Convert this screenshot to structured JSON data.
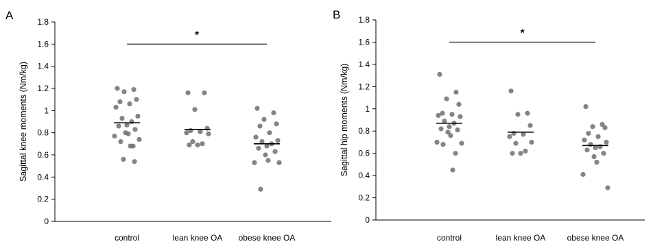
{
  "chart_data": [
    {
      "type": "scatter",
      "panel_label": "A",
      "title": "",
      "xlabel": "",
      "ylabel": "Sagittal knee moments (Nm/kg)",
      "ylim": [
        0,
        1.8
      ],
      "yticks": [
        "0",
        "0.2",
        "0.4",
        "0.6",
        "0.8",
        "1",
        "1.2",
        "1.4",
        "1.6",
        "1.8"
      ],
      "grid": false,
      "categories": [
        "control",
        "lean knee OA",
        "obese knee OA"
      ],
      "means": [
        0.89,
        0.83,
        0.7
      ],
      "significance": {
        "from": "control",
        "to": "obese knee OA",
        "y": 1.6,
        "label": "*"
      },
      "series": [
        {
          "category": "control",
          "values": [
            1.2,
            1.19,
            1.17,
            1.1,
            1.08,
            1.06,
            1.03,
            0.95,
            0.93,
            0.9,
            0.87,
            0.86,
            0.83,
            0.8,
            0.79,
            0.77,
            0.74,
            0.72,
            0.68,
            0.68,
            0.56,
            0.54
          ]
        },
        {
          "category": "lean knee OA",
          "values": [
            1.16,
            1.16,
            1.01,
            0.84,
            0.82,
            0.81,
            0.8,
            0.79,
            0.72,
            0.7,
            0.69,
            0.69
          ]
        },
        {
          "category": "obese knee OA",
          "values": [
            1.02,
            0.98,
            0.92,
            0.88,
            0.86,
            0.8,
            0.76,
            0.73,
            0.72,
            0.7,
            0.68,
            0.66,
            0.63,
            0.6,
            0.55,
            0.53,
            0.53,
            0.29
          ]
        }
      ]
    },
    {
      "type": "scatter",
      "panel_label": "B",
      "title": "",
      "xlabel": "",
      "ylabel": "Sagittal hip moments (Nm/kg)",
      "ylim": [
        0,
        1.8
      ],
      "yticks": [
        "0",
        "0.2",
        "0.4",
        "0.6",
        "0.8",
        "1",
        "1.2",
        "1.4",
        "1.6",
        "1.8"
      ],
      "grid": false,
      "categories": [
        "control",
        "lean knee OA",
        "obese knee OA"
      ],
      "means": [
        0.87,
        0.79,
        0.67
      ],
      "significance": {
        "from": "control",
        "to": "obese knee OA",
        "y": 1.6,
        "label": "*"
      },
      "series": [
        {
          "category": "control",
          "values": [
            1.31,
            1.15,
            1.09,
            1.04,
            0.96,
            0.95,
            0.94,
            0.93,
            0.89,
            0.87,
            0.84,
            0.82,
            0.81,
            0.79,
            0.76,
            0.7,
            0.69,
            0.68,
            0.6,
            0.45
          ]
        },
        {
          "category": "lean knee OA",
          "values": [
            1.16,
            0.96,
            0.95,
            0.85,
            0.78,
            0.77,
            0.75,
            0.7,
            0.69,
            0.62,
            0.6,
            0.6
          ]
        },
        {
          "category": "obese knee OA",
          "values": [
            1.02,
            0.86,
            0.84,
            0.83,
            0.78,
            0.75,
            0.72,
            0.7,
            0.68,
            0.66,
            0.65,
            0.63,
            0.6,
            0.57,
            0.52,
            0.41,
            0.29
          ]
        }
      ]
    }
  ]
}
